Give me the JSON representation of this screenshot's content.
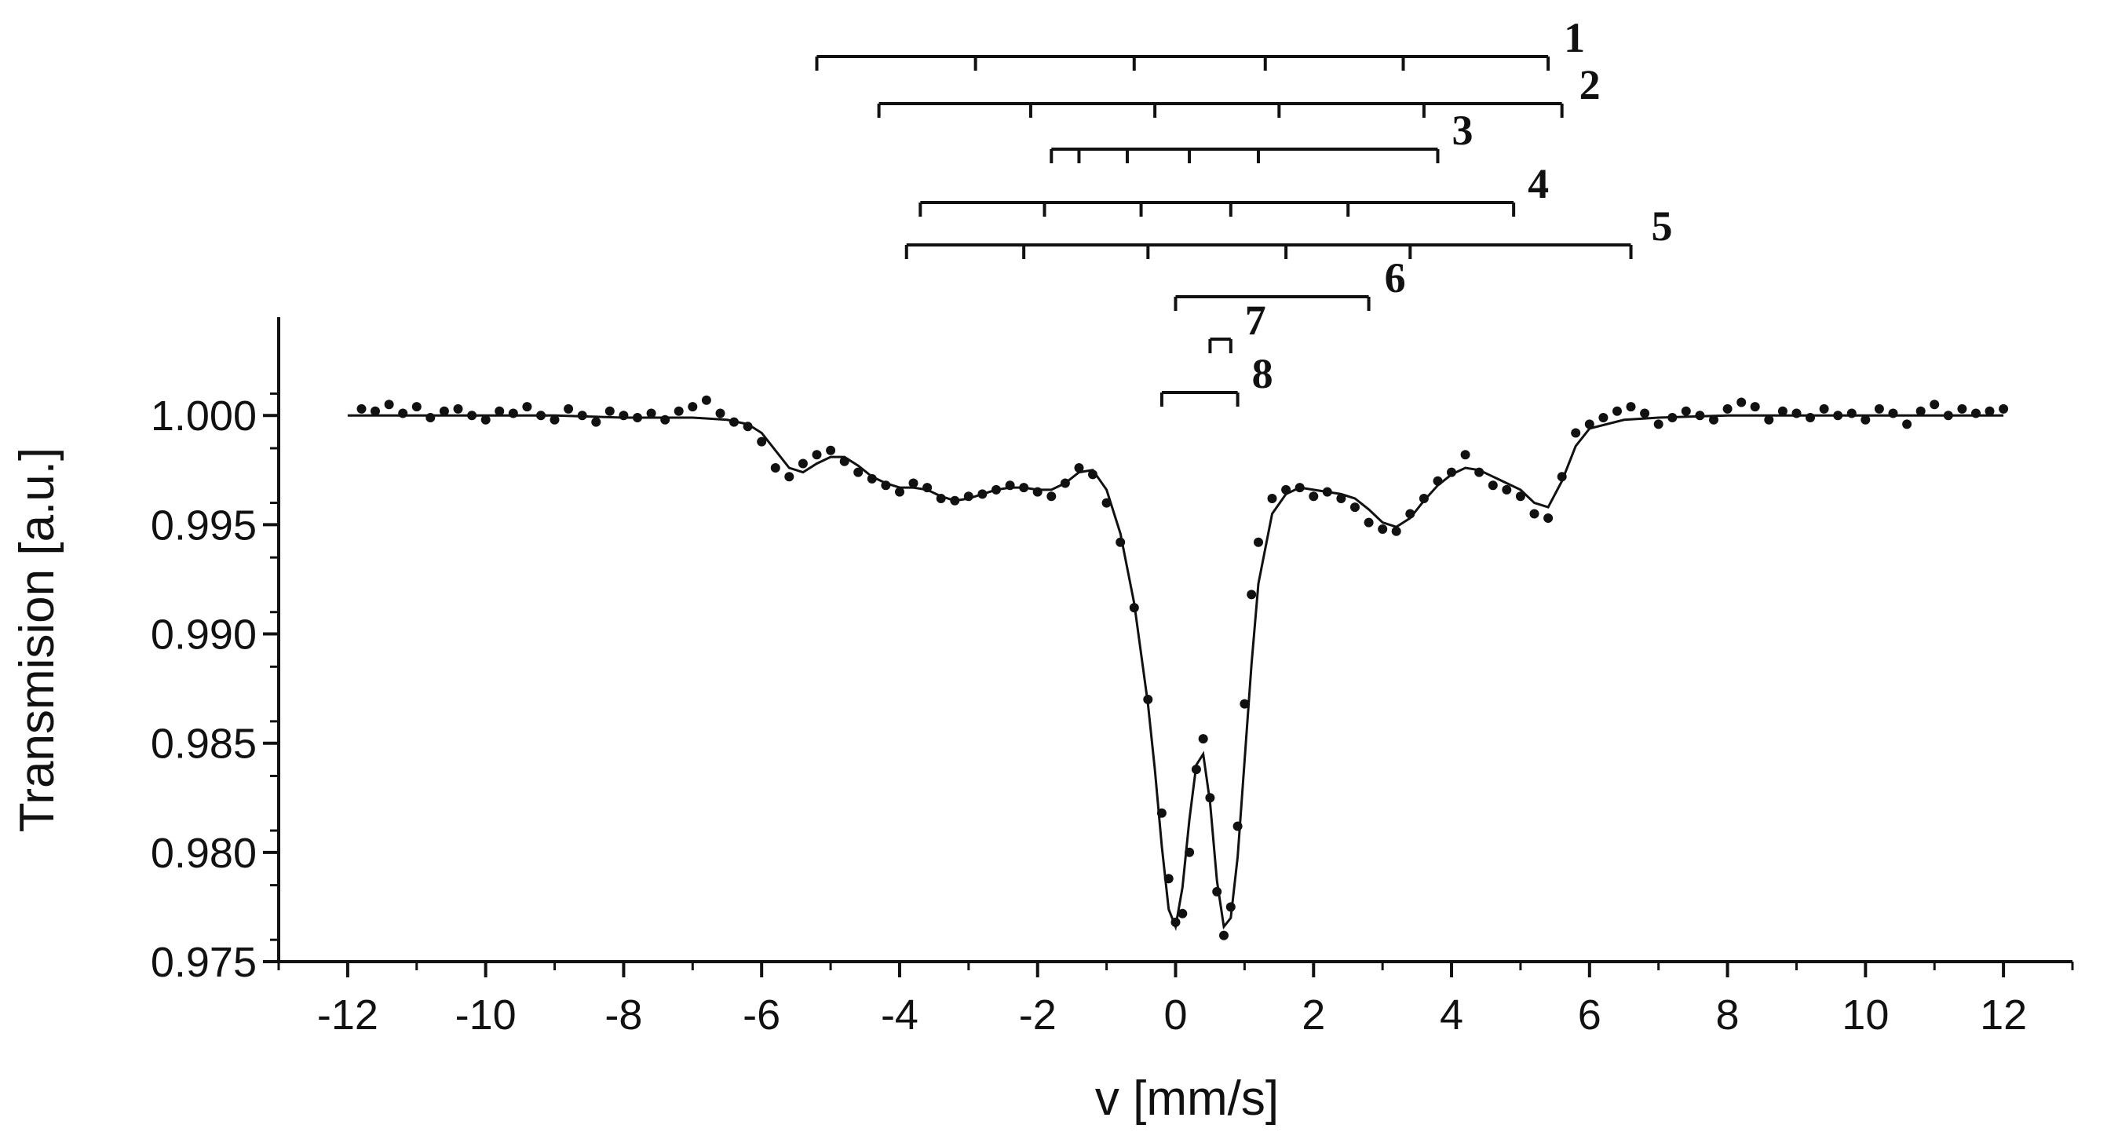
{
  "chart_data": {
    "type": "scatter",
    "xlabel": "v [mm/s]",
    "ylabel": "Transmision [a.u.]",
    "xlim": [
      -13,
      13
    ],
    "ylim": [
      0.975,
      1.0045
    ],
    "x_ticks": [
      -12,
      -10,
      -8,
      -6,
      -4,
      -2,
      0,
      2,
      4,
      6,
      8,
      10,
      12
    ],
    "y_ticks": [
      0.975,
      0.98,
      0.985,
      0.99,
      0.995,
      1.0
    ],
    "x_tick_labels": [
      "-12",
      "-10",
      "-8",
      "-6",
      "-4",
      "-2",
      "0",
      "2",
      "4",
      "6",
      "8",
      "10",
      "12"
    ],
    "y_tick_labels": [
      "0.975",
      "0.980",
      "0.985",
      "0.990",
      "0.995",
      "1.000"
    ],
    "grid": false,
    "series": [
      {
        "style": "markers",
        "x": [
          -11.8,
          -11.6,
          -11.4,
          -11.2,
          -11.0,
          -10.8,
          -10.6,
          -10.4,
          -10.2,
          -10.0,
          -9.8,
          -9.6,
          -9.4,
          -9.2,
          -9.0,
          -8.8,
          -8.6,
          -8.4,
          -8.2,
          -8.0,
          -7.8,
          -7.6,
          -7.4,
          -7.2,
          -7.0,
          -6.8,
          -6.6,
          -6.4,
          -6.2,
          -6.0,
          -5.8,
          -5.6,
          -5.4,
          -5.2,
          -5.0,
          -4.8,
          -4.6,
          -4.4,
          -4.2,
          -4.0,
          -3.8,
          -3.6,
          -3.4,
          -3.2,
          -3.0,
          -2.8,
          -2.6,
          -2.4,
          -2.2,
          -2.0,
          -1.8,
          -1.6,
          -1.4,
          -1.2,
          -1.0,
          -0.8,
          -0.6,
          -0.4,
          -0.2,
          -0.1,
          0.0,
          0.1,
          0.2,
          0.3,
          0.4,
          0.5,
          0.6,
          0.7,
          0.8,
          0.9,
          1.0,
          1.1,
          1.2,
          1.4,
          1.6,
          1.8,
          2.0,
          2.2,
          2.4,
          2.6,
          2.8,
          3.0,
          3.2,
          3.4,
          3.6,
          3.8,
          4.0,
          4.2,
          4.4,
          4.6,
          4.8,
          5.0,
          5.2,
          5.4,
          5.6,
          5.8,
          6.0,
          6.2,
          6.4,
          6.6,
          6.8,
          7.0,
          7.2,
          7.4,
          7.6,
          7.8,
          8.0,
          8.2,
          8.4,
          8.6,
          8.8,
          9.0,
          9.2,
          9.4,
          9.6,
          9.8,
          10.0,
          10.2,
          10.4,
          10.6,
          10.8,
          11.0,
          11.2,
          11.4,
          11.6,
          11.8,
          12.0
        ],
        "y": [
          1.0003,
          1.0002,
          1.0005,
          1.0001,
          1.0004,
          0.9999,
          1.0002,
          1.0003,
          1.0,
          0.9998,
          1.0002,
          1.0001,
          1.0004,
          1.0,
          0.9998,
          1.0003,
          1.0,
          0.9997,
          1.0002,
          1.0,
          0.9999,
          1.0001,
          0.9998,
          1.0002,
          1.0004,
          1.0007,
          1.0001,
          0.9997,
          0.9995,
          0.9988,
          0.9976,
          0.9972,
          0.9978,
          0.9982,
          0.9984,
          0.9979,
          0.9974,
          0.9971,
          0.9968,
          0.9965,
          0.9969,
          0.9967,
          0.9962,
          0.9961,
          0.9963,
          0.9964,
          0.9966,
          0.9968,
          0.9967,
          0.9965,
          0.9963,
          0.9969,
          0.9976,
          0.9973,
          0.996,
          0.9942,
          0.9912,
          0.987,
          0.9818,
          0.9788,
          0.9768,
          0.9772,
          0.98,
          0.9838,
          0.9852,
          0.9825,
          0.9782,
          0.9762,
          0.9775,
          0.9812,
          0.9868,
          0.9918,
          0.9942,
          0.9962,
          0.9966,
          0.9967,
          0.9963,
          0.9965,
          0.9962,
          0.9958,
          0.9951,
          0.9948,
          0.9947,
          0.9955,
          0.9962,
          0.997,
          0.9974,
          0.9982,
          0.9974,
          0.9968,
          0.9966,
          0.9963,
          0.9955,
          0.9953,
          0.9972,
          0.9992,
          0.9996,
          0.9999,
          1.0002,
          1.0004,
          1.0001,
          0.9996,
          0.9999,
          1.0002,
          1.0,
          0.9998,
          1.0003,
          1.0006,
          1.0004,
          0.9998,
          1.0002,
          1.0001,
          0.9999,
          1.0003,
          1.0,
          1.0001,
          0.9998,
          1.0003,
          1.0001,
          0.9996,
          1.0002,
          1.0005,
          1.0,
          1.0003,
          1.0001,
          1.0002,
          1.0003
        ]
      },
      {
        "style": "line",
        "x": [
          -12.0,
          -11.0,
          -10.0,
          -9.0,
          -8.0,
          -7.0,
          -6.5,
          -6.2,
          -6.0,
          -5.8,
          -5.6,
          -5.4,
          -5.2,
          -5.0,
          -4.8,
          -4.6,
          -4.4,
          -4.2,
          -4.0,
          -3.8,
          -3.6,
          -3.4,
          -3.2,
          -3.0,
          -2.8,
          -2.6,
          -2.4,
          -2.2,
          -2.0,
          -1.8,
          -1.6,
          -1.4,
          -1.2,
          -1.0,
          -0.8,
          -0.6,
          -0.4,
          -0.3,
          -0.2,
          -0.1,
          0.0,
          0.1,
          0.2,
          0.3,
          0.4,
          0.5,
          0.6,
          0.7,
          0.8,
          0.9,
          1.0,
          1.1,
          1.2,
          1.4,
          1.6,
          1.8,
          2.0,
          2.2,
          2.4,
          2.6,
          2.8,
          3.0,
          3.2,
          3.4,
          3.6,
          3.8,
          4.0,
          4.2,
          4.4,
          4.6,
          4.8,
          5.0,
          5.2,
          5.4,
          5.6,
          5.8,
          6.0,
          6.5,
          7.0,
          8.0,
          9.0,
          10.0,
          11.0,
          12.0
        ],
        "y": [
          1.0,
          1.0,
          1.0,
          1.0,
          0.9999,
          0.9999,
          0.9998,
          0.9996,
          0.9992,
          0.9984,
          0.9976,
          0.9974,
          0.9978,
          0.9981,
          0.9981,
          0.9977,
          0.9972,
          0.9969,
          0.9967,
          0.9967,
          0.9966,
          0.9963,
          0.9961,
          0.9962,
          0.9964,
          0.9966,
          0.9967,
          0.9967,
          0.9966,
          0.9966,
          0.9969,
          0.9974,
          0.9975,
          0.9966,
          0.9946,
          0.9914,
          0.9868,
          0.9838,
          0.9803,
          0.9774,
          0.9766,
          0.9784,
          0.9815,
          0.984,
          0.9845,
          0.9823,
          0.9787,
          0.9766,
          0.977,
          0.9798,
          0.9842,
          0.9886,
          0.9923,
          0.9955,
          0.9964,
          0.9967,
          0.9966,
          0.9965,
          0.9964,
          0.9962,
          0.9957,
          0.9951,
          0.9949,
          0.9953,
          0.9961,
          0.9968,
          0.9973,
          0.9976,
          0.9975,
          0.9972,
          0.9969,
          0.9966,
          0.996,
          0.9958,
          0.997,
          0.9986,
          0.9994,
          0.9998,
          0.9999,
          1.0,
          1.0,
          1.0,
          1.0,
          1.0
        ]
      }
    ],
    "components": [
      {
        "label": "1",
        "lines": [
          -5.2,
          -2.9,
          -0.6,
          1.3,
          3.3,
          5.4
        ]
      },
      {
        "label": "2",
        "lines": [
          -4.3,
          -2.1,
          -0.3,
          1.5,
          3.6,
          5.6
        ]
      },
      {
        "label": "3",
        "lines": [
          -1.8,
          -1.4,
          -0.7,
          0.2,
          1.2,
          3.8
        ]
      },
      {
        "label": "4",
        "lines": [
          -3.7,
          -1.9,
          -0.5,
          0.8,
          2.5,
          4.9
        ]
      },
      {
        "label": "5",
        "lines": [
          -3.9,
          -2.2,
          -0.4,
          1.6,
          3.4,
          6.6
        ]
      },
      {
        "label": "6",
        "lines": [
          0.0,
          2.8
        ]
      },
      {
        "label": "7",
        "lines": [
          0.5,
          0.8
        ]
      },
      {
        "label": "8",
        "lines": [
          -0.2,
          0.9
        ]
      }
    ]
  }
}
